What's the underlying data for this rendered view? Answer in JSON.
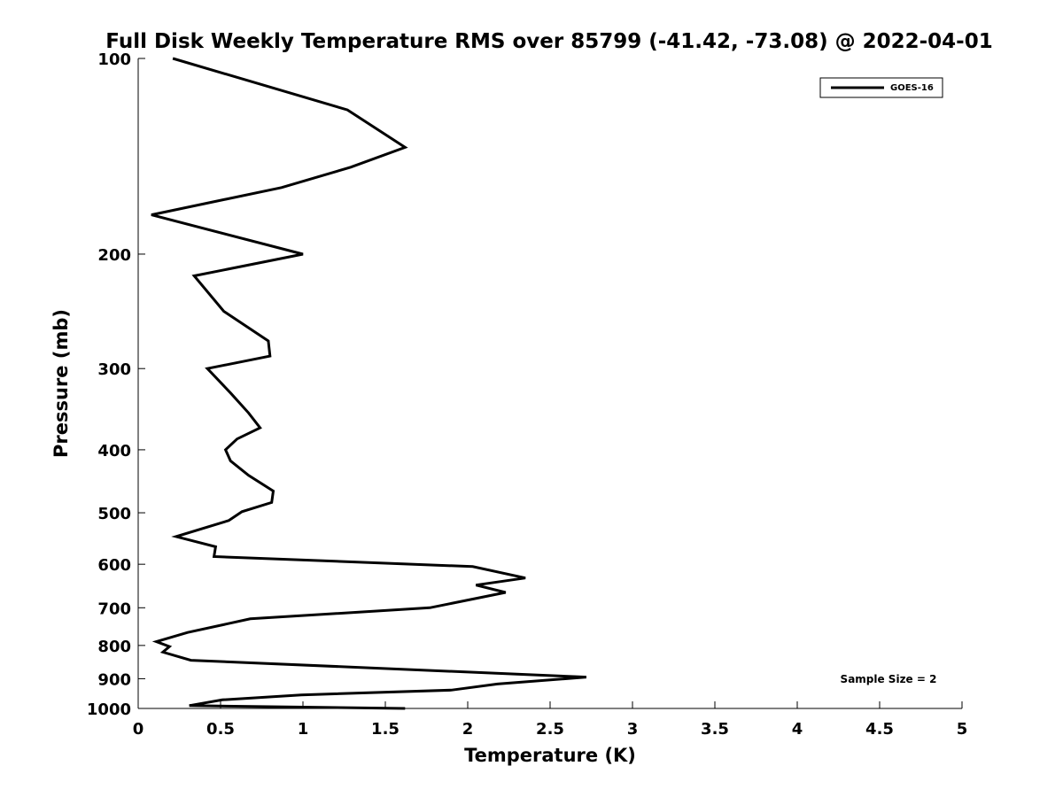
{
  "chart_data": {
    "type": "line",
    "title": "Full Disk Weekly Temperature RMS over 85799 (-41.42, -73.08) @ 2022-04-01",
    "xlabel": "Temperature (K)",
    "ylabel": "Pressure (mb)",
    "xlim": [
      0,
      5
    ],
    "ylim": [
      100,
      1000
    ],
    "y_scale": "log",
    "y_reversed": true,
    "grid": false,
    "legend_position": "top-right",
    "x_ticks": [
      0,
      0.5,
      1,
      1.5,
      2,
      2.5,
      3,
      3.5,
      4,
      4.5,
      5
    ],
    "x_tick_labels": [
      "0",
      "0.5",
      "1",
      "1.5",
      "2",
      "2.5",
      "3",
      "3.5",
      "4",
      "4.5",
      "5"
    ],
    "y_ticks": [
      100,
      200,
      300,
      400,
      500,
      600,
      700,
      800,
      900,
      1000
    ],
    "y_tick_labels": [
      "100",
      "200",
      "300",
      "400",
      "500",
      "600",
      "700",
      "800",
      "900",
      "1000"
    ],
    "series": [
      {
        "name": "GOES-16",
        "color": "#000000",
        "x": [
          0.21,
          1.27,
          1.62,
          1.29,
          0.87,
          0.08,
          1.0,
          0.34,
          0.52,
          0.79,
          0.8,
          0.42,
          0.56,
          0.67,
          0.74,
          0.6,
          0.53,
          0.56,
          0.67,
          0.82,
          0.81,
          0.63,
          0.55,
          0.23,
          0.47,
          0.46,
          2.03,
          2.35,
          2.05,
          2.23,
          1.77,
          0.68,
          0.3,
          0.11,
          0.19,
          0.15,
          0.32,
          2.72,
          2.18,
          1.9,
          0.99,
          0.51,
          0.31,
          1.62
        ],
        "y": [
          100,
          120,
          137,
          147,
          158,
          174,
          200,
          216,
          245,
          272,
          287,
          300,
          327,
          351,
          370,
          385,
          400,
          416,
          438,
          463,
          482,
          498,
          514,
          544,
          564,
          584,
          605,
          630,
          646,
          663,
          700,
          728,
          764,
          789,
          803,
          819,
          843,
          895,
          917,
          937,
          953,
          970,
          990,
          1000
        ]
      }
    ],
    "annotations": [
      "Sample Size = 2"
    ]
  }
}
